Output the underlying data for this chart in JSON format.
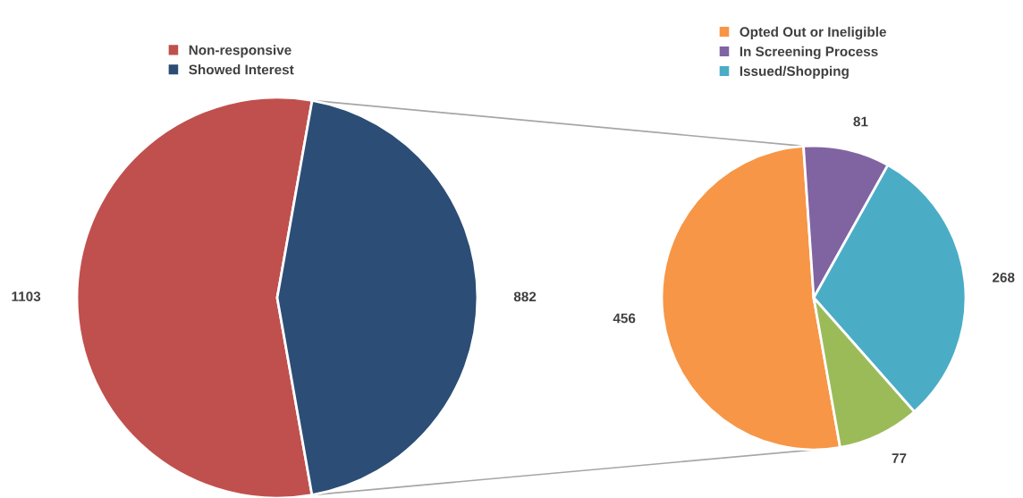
{
  "chart_data": [
    {
      "type": "pie",
      "categories": [
        "Non-responsive",
        "Showed Interest"
      ],
      "values": [
        1103,
        882
      ],
      "colors": [
        "#c0504d",
        "#2c4d75"
      ],
      "data_labels": true,
      "legend": "top left"
    },
    {
      "type": "pie",
      "categories": [
        "Opted Out or Ineligible",
        "In Screening Process",
        "Issued/Shopping",
        null
      ],
      "values": [
        456,
        81,
        268,
        77
      ],
      "colors": [
        "#f79646",
        "#8064a2",
        "#4bacc6",
        "#9bbb59"
      ],
      "data_labels": true,
      "legend": "top right"
    }
  ]
}
